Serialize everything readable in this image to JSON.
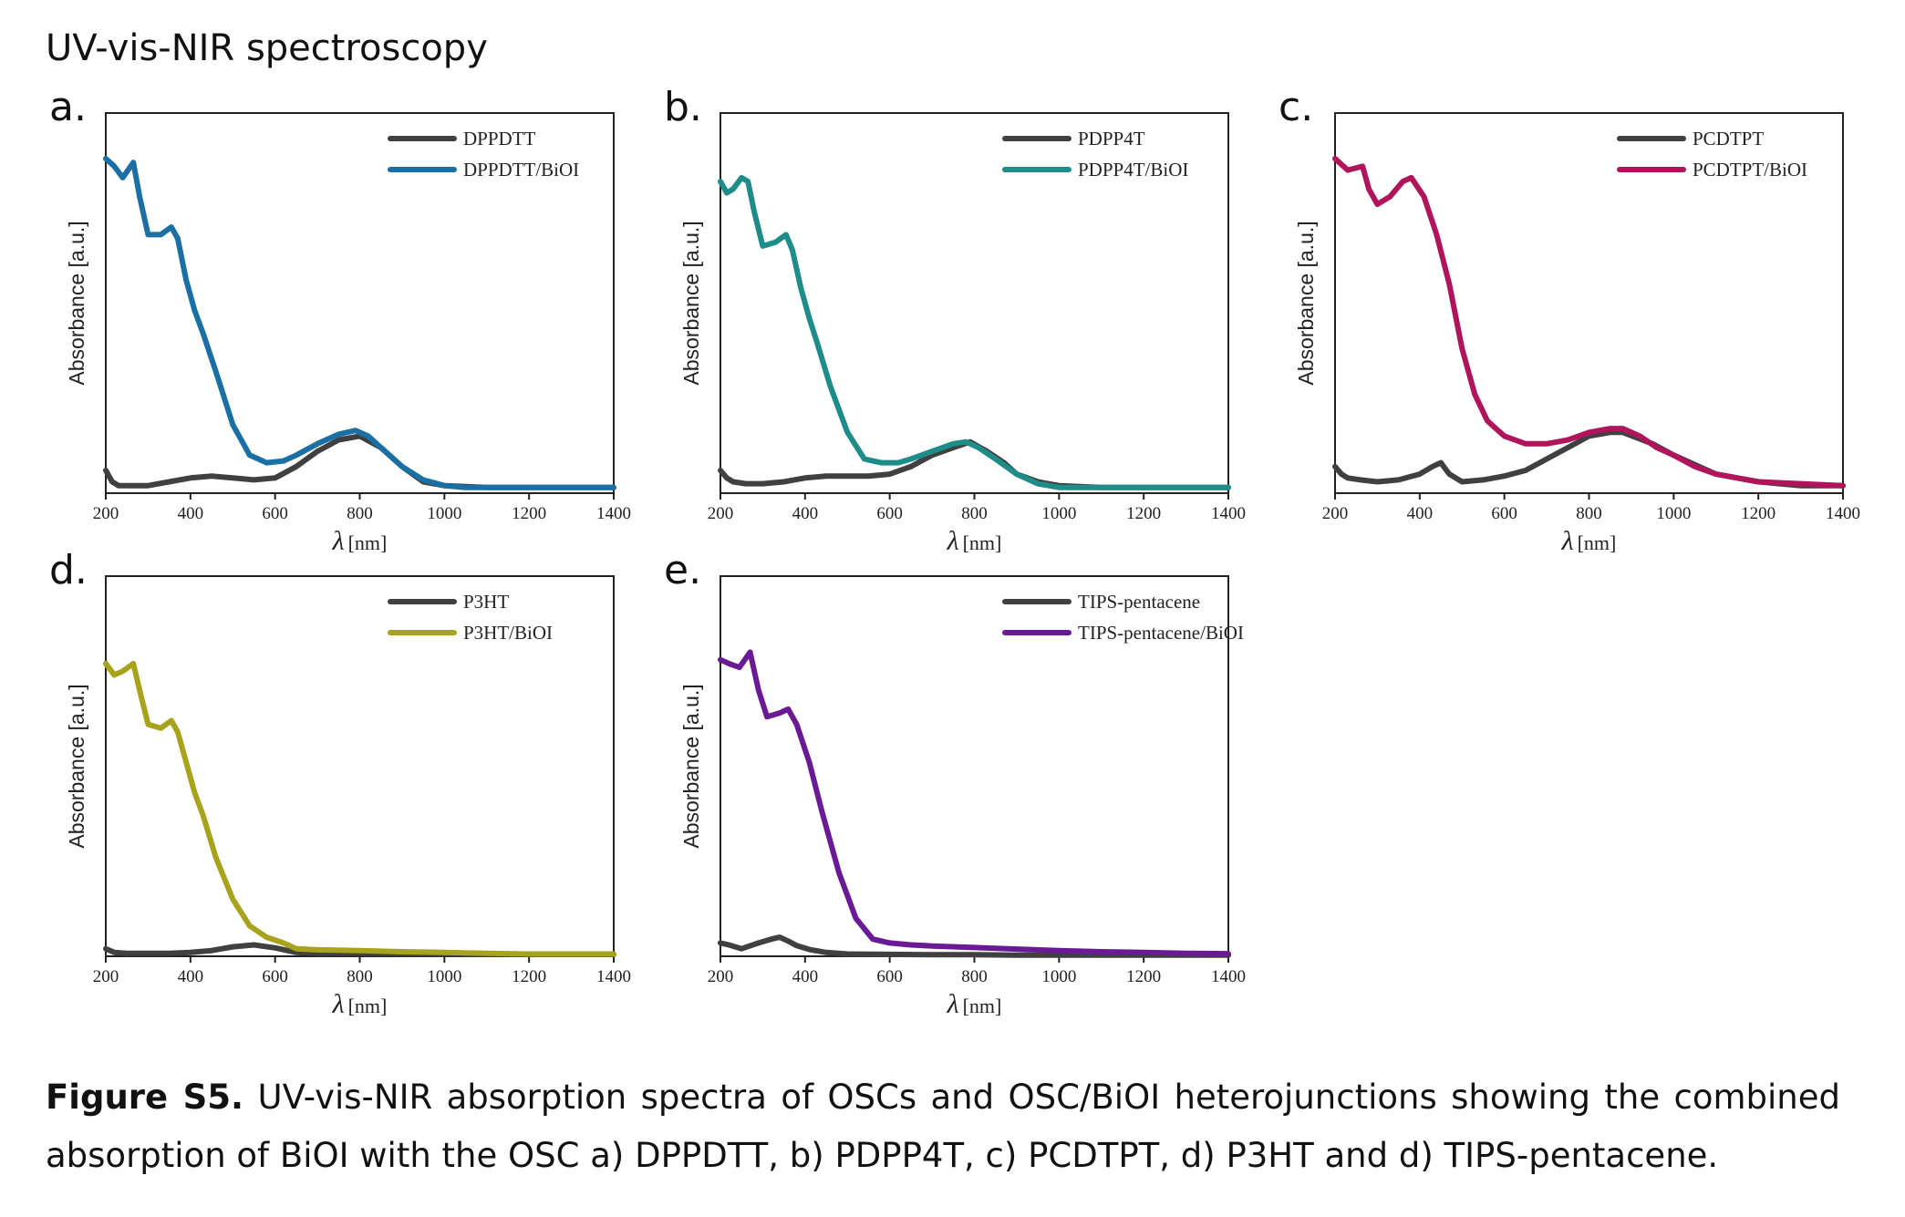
{
  "page_title": "UV-vis-NIR spectroscopy",
  "caption": {
    "label": "Figure S5.",
    "text": " UV-vis-NIR absorption spectra of OSCs and OSC/BiOI heterojunctions showing the combined absorption of BiOI with the OSC a) DPPDTT, b) PDPP4T, c) PCDTPT, d) P3HT and d) TIPS-pentacene."
  },
  "chart_data": [
    {
      "panel": "a.",
      "type": "line",
      "xlabel_symbol": "λ",
      "xlabel_unit": "[nm]",
      "ylabel": "Absorbance [a.u.]",
      "xlim": [
        200,
        1400
      ],
      "ylim": [
        0,
        1.0
      ],
      "xticks": [
        200,
        400,
        600,
        800,
        1000,
        1200,
        1400
      ],
      "legend": "top-right",
      "series": [
        {
          "name": "DPPDTT",
          "color": "#404040",
          "x": [
            200,
            215,
            230,
            260,
            300,
            350,
            400,
            450,
            500,
            550,
            600,
            650,
            700,
            750,
            800,
            850,
            900,
            950,
            1000,
            1100,
            1200,
            1300,
            1400
          ],
          "y": [
            0.06,
            0.03,
            0.02,
            0.02,
            0.02,
            0.03,
            0.04,
            0.045,
            0.04,
            0.035,
            0.04,
            0.07,
            0.11,
            0.14,
            0.15,
            0.12,
            0.07,
            0.03,
            0.02,
            0.015,
            0.015,
            0.015,
            0.015
          ]
        },
        {
          "name": "DPPDTT/BiOI",
          "color": "#1a6fa5",
          "x": [
            200,
            220,
            240,
            265,
            280,
            300,
            330,
            355,
            370,
            390,
            410,
            430,
            460,
            500,
            540,
            580,
            620,
            650,
            700,
            750,
            790,
            820,
            850,
            900,
            950,
            1000,
            1050,
            1100,
            1200,
            1300,
            1400
          ],
          "y": [
            0.88,
            0.86,
            0.83,
            0.87,
            0.78,
            0.68,
            0.68,
            0.7,
            0.67,
            0.56,
            0.48,
            0.42,
            0.32,
            0.18,
            0.1,
            0.08,
            0.085,
            0.1,
            0.13,
            0.155,
            0.165,
            0.15,
            0.12,
            0.07,
            0.035,
            0.02,
            0.015,
            0.015,
            0.015,
            0.015,
            0.015
          ]
        }
      ]
    },
    {
      "panel": "b.",
      "type": "line",
      "xlabel_symbol": "λ",
      "xlabel_unit": "[nm]",
      "ylabel": "Absorbance [a.u.]",
      "xlim": [
        200,
        1400
      ],
      "ylim": [
        0,
        1.0
      ],
      "xticks": [
        200,
        400,
        600,
        800,
        1000,
        1200,
        1400
      ],
      "legend": "top-right",
      "series": [
        {
          "name": "PDPP4T",
          "color": "#404040",
          "x": [
            200,
            215,
            230,
            260,
            300,
            350,
            400,
            450,
            500,
            550,
            600,
            650,
            700,
            750,
            790,
            830,
            870,
            900,
            950,
            1000,
            1100,
            1200,
            1300,
            1400
          ],
          "y": [
            0.06,
            0.04,
            0.03,
            0.025,
            0.025,
            0.03,
            0.04,
            0.045,
            0.045,
            0.045,
            0.05,
            0.07,
            0.1,
            0.12,
            0.135,
            0.11,
            0.08,
            0.05,
            0.03,
            0.02,
            0.015,
            0.015,
            0.015,
            0.015
          ]
        },
        {
          "name": "PDPP4T/BiOI",
          "color": "#1e8c88",
          "x": [
            200,
            215,
            230,
            250,
            265,
            280,
            300,
            330,
            355,
            370,
            390,
            410,
            430,
            460,
            500,
            540,
            580,
            620,
            650,
            700,
            750,
            780,
            810,
            850,
            900,
            950,
            1000,
            1100,
            1200,
            1300,
            1400
          ],
          "y": [
            0.82,
            0.79,
            0.8,
            0.83,
            0.82,
            0.74,
            0.65,
            0.66,
            0.68,
            0.64,
            0.54,
            0.46,
            0.39,
            0.28,
            0.16,
            0.09,
            0.08,
            0.08,
            0.09,
            0.11,
            0.13,
            0.135,
            0.12,
            0.09,
            0.05,
            0.025,
            0.015,
            0.015,
            0.015,
            0.015,
            0.015
          ]
        }
      ]
    },
    {
      "panel": "c.",
      "type": "line",
      "xlabel_symbol": "λ",
      "xlabel_unit": "[nm]",
      "ylabel": "Absorbance [a.u.]",
      "xlim": [
        200,
        1400
      ],
      "ylim": [
        0,
        1.0
      ],
      "xticks": [
        200,
        400,
        600,
        800,
        1000,
        1200,
        1400
      ],
      "legend": "top-right",
      "series": [
        {
          "name": "PCDTPT",
          "color": "#404040",
          "x": [
            200,
            215,
            230,
            260,
            300,
            350,
            400,
            430,
            450,
            470,
            500,
            550,
            600,
            650,
            700,
            750,
            800,
            850,
            880,
            950,
            1000,
            1100,
            1200,
            1300,
            1400
          ],
          "y": [
            0.07,
            0.05,
            0.04,
            0.035,
            0.03,
            0.035,
            0.05,
            0.07,
            0.08,
            0.05,
            0.03,
            0.035,
            0.045,
            0.06,
            0.09,
            0.12,
            0.15,
            0.16,
            0.16,
            0.13,
            0.1,
            0.05,
            0.03,
            0.02,
            0.02
          ]
        },
        {
          "name": "PCDTPT/BiOI",
          "color": "#b0155c",
          "x": [
            200,
            230,
            265,
            280,
            300,
            330,
            360,
            380,
            410,
            440,
            470,
            500,
            530,
            560,
            600,
            650,
            700,
            750,
            800,
            850,
            880,
            920,
            960,
            1000,
            1050,
            1100,
            1200,
            1300,
            1400
          ],
          "y": [
            0.88,
            0.85,
            0.86,
            0.8,
            0.76,
            0.78,
            0.82,
            0.83,
            0.78,
            0.68,
            0.55,
            0.38,
            0.26,
            0.19,
            0.15,
            0.13,
            0.13,
            0.14,
            0.16,
            0.17,
            0.17,
            0.15,
            0.12,
            0.1,
            0.07,
            0.05,
            0.03,
            0.025,
            0.02
          ]
        }
      ]
    },
    {
      "panel": "d.",
      "type": "line",
      "xlabel_symbol": "λ",
      "xlabel_unit": "[nm]",
      "ylabel": "Absorbance [a.u.]",
      "xlim": [
        200,
        1400
      ],
      "ylim": [
        0,
        1.0
      ],
      "xticks": [
        200,
        400,
        600,
        800,
        1000,
        1200,
        1400
      ],
      "legend": "top-right",
      "series": [
        {
          "name": "P3HT",
          "color": "#404040",
          "x": [
            200,
            220,
            250,
            300,
            350,
            400,
            450,
            500,
            550,
            600,
            650,
            700,
            800,
            900,
            1000,
            1100,
            1200,
            1300,
            1400
          ],
          "y": [
            0.02,
            0.01,
            0.008,
            0.008,
            0.008,
            0.01,
            0.015,
            0.025,
            0.03,
            0.022,
            0.01,
            0.008,
            0.008,
            0.007,
            0.006,
            0.005,
            0.005,
            0.005,
            0.005
          ]
        },
        {
          "name": "P3HT/BiOI",
          "color": "#a8a31c",
          "x": [
            200,
            220,
            240,
            265,
            280,
            300,
            330,
            355,
            370,
            390,
            410,
            430,
            460,
            500,
            540,
            580,
            620,
            650,
            700,
            800,
            900,
            1000,
            1100,
            1200,
            1300,
            1400
          ],
          "y": [
            0.77,
            0.74,
            0.75,
            0.77,
            0.7,
            0.61,
            0.6,
            0.62,
            0.59,
            0.51,
            0.43,
            0.37,
            0.26,
            0.15,
            0.08,
            0.05,
            0.035,
            0.02,
            0.017,
            0.015,
            0.012,
            0.01,
            0.008,
            0.006,
            0.006,
            0.006
          ]
        }
      ]
    },
    {
      "panel": "e.",
      "type": "line",
      "xlabel_symbol": "λ",
      "xlabel_unit": "[nm]",
      "ylabel": "Absorbance [a.u.]",
      "xlim": [
        200,
        1400
      ],
      "ylim": [
        0,
        1.0
      ],
      "xticks": [
        200,
        400,
        600,
        800,
        1000,
        1200,
        1400
      ],
      "legend": "top-right",
      "series": [
        {
          "name": "TIPS-pentacene",
          "color": "#404040",
          "x": [
            200,
            220,
            250,
            290,
            320,
            340,
            360,
            380,
            410,
            450,
            500,
            600,
            700,
            800,
            900,
            1000,
            1100,
            1200,
            1300,
            1400
          ],
          "y": [
            0.035,
            0.03,
            0.02,
            0.035,
            0.045,
            0.05,
            0.04,
            0.028,
            0.018,
            0.01,
            0.006,
            0.005,
            0.004,
            0.004,
            0.003,
            0.003,
            0.003,
            0.003,
            0.003,
            0.003
          ]
        },
        {
          "name": "TIPS-pentacene/BiOI",
          "color": "#6a1a95",
          "x": [
            200,
            220,
            245,
            270,
            290,
            310,
            340,
            360,
            380,
            410,
            440,
            480,
            520,
            560,
            600,
            650,
            700,
            800,
            900,
            1000,
            1100,
            1200,
            1300,
            1400
          ],
          "y": [
            0.78,
            0.77,
            0.76,
            0.8,
            0.7,
            0.63,
            0.64,
            0.65,
            0.61,
            0.51,
            0.38,
            0.22,
            0.1,
            0.045,
            0.035,
            0.03,
            0.027,
            0.023,
            0.019,
            0.015,
            0.012,
            0.01,
            0.008,
            0.007
          ]
        }
      ]
    }
  ]
}
